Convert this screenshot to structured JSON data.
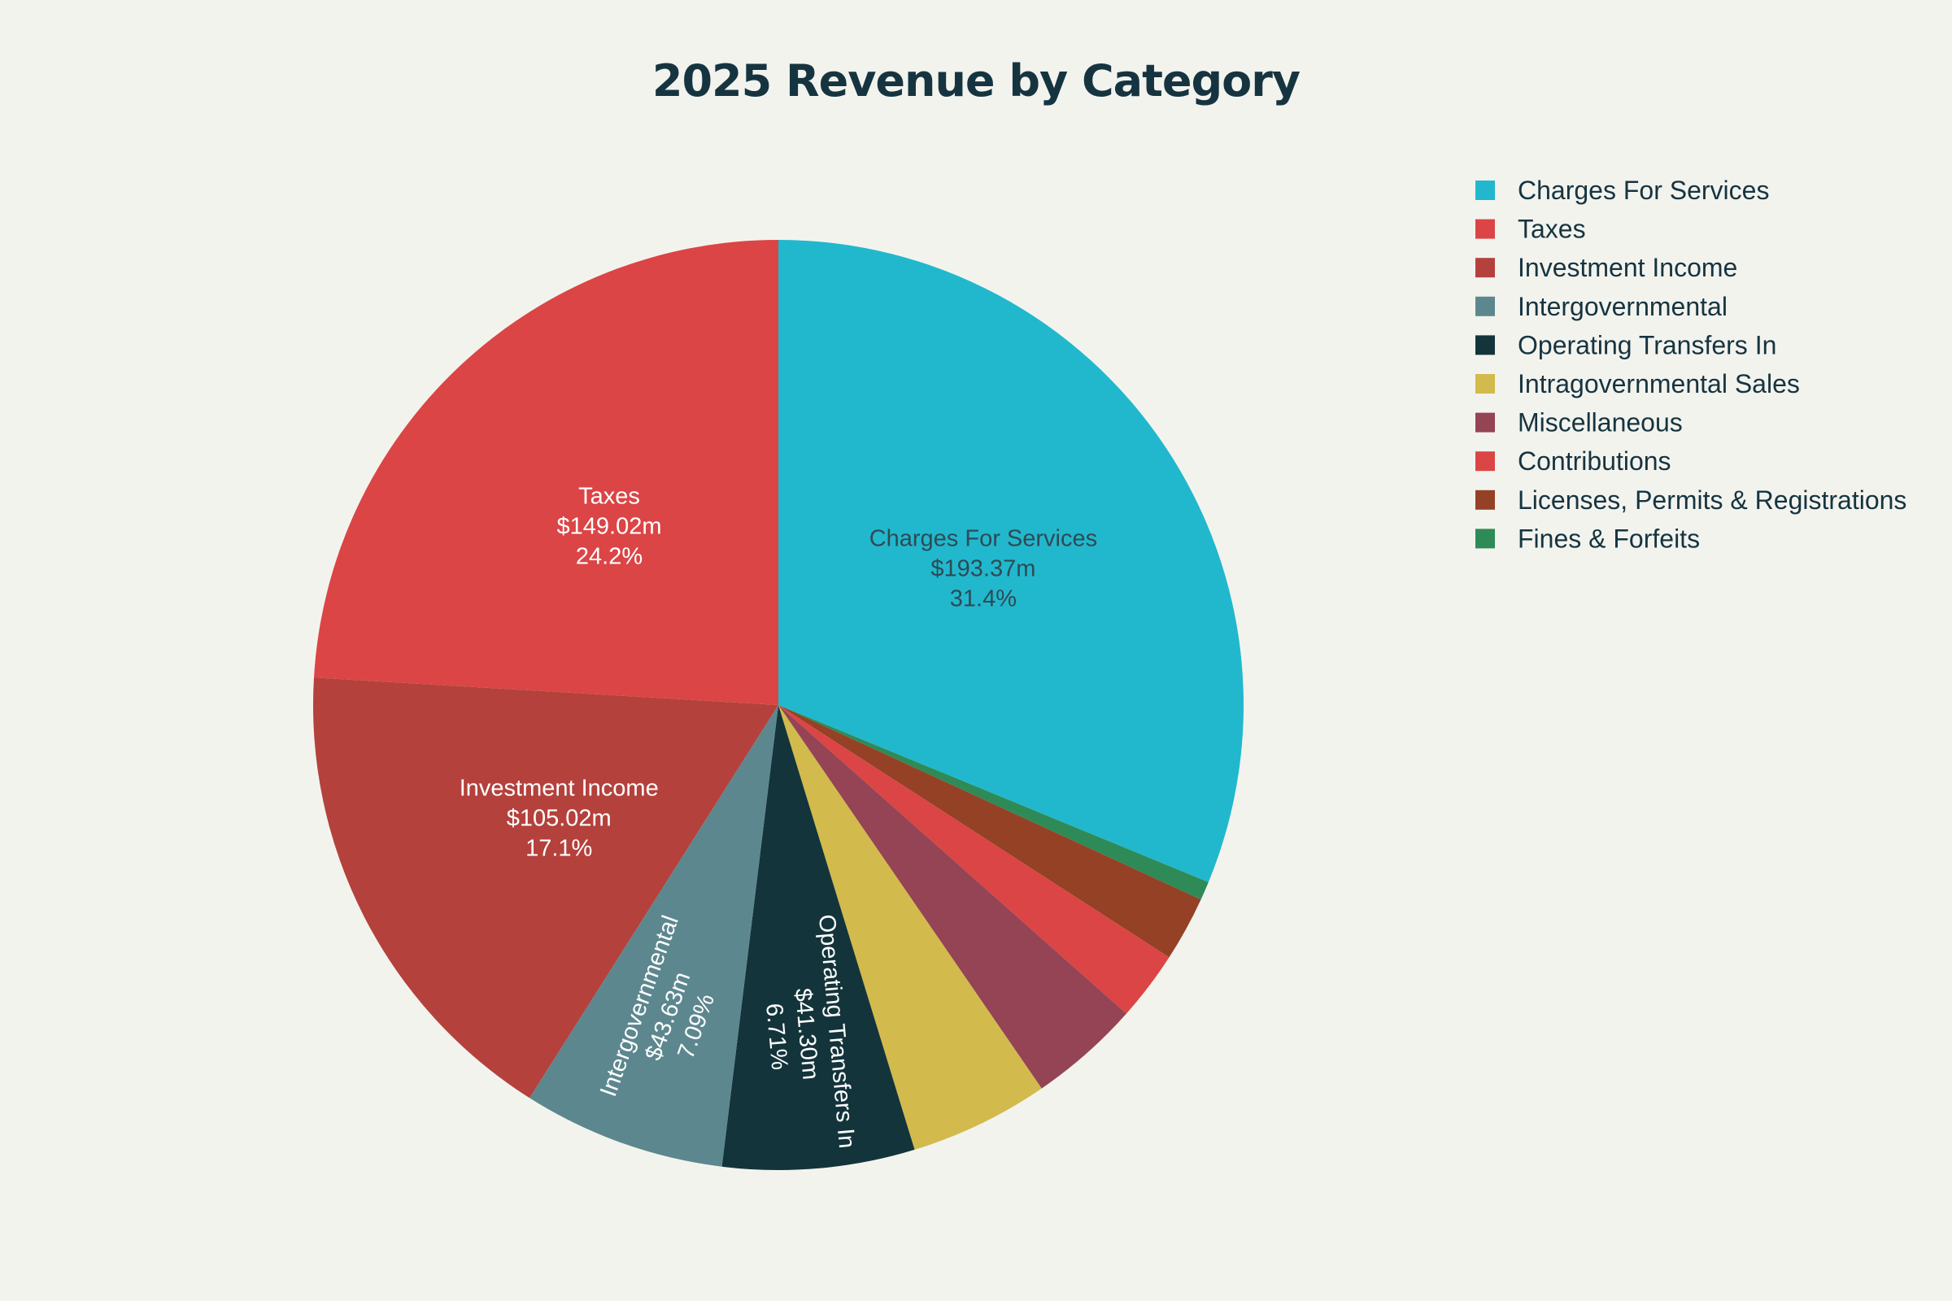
{
  "chart_data": {
    "type": "pie",
    "title": "2025 Revenue by Category",
    "start_angle_deg": 0,
    "direction": "clockwise",
    "legend_position": "right",
    "slices": [
      {
        "name": "Charges For Services",
        "value": 193.37,
        "value_label": "$193.37m",
        "percent_label": "31.4%",
        "color": "#21b8cd",
        "label_color": "#2f4a55",
        "show_label": true,
        "rotated_label": false
      },
      {
        "name": "Fines & Forfeits",
        "value": 4.0,
        "value_label": "",
        "percent_label": "",
        "color": "#2e8b57",
        "label_color": "#ffffff",
        "show_label": false,
        "rotated_label": false
      },
      {
        "name": "Licenses, Permits & Registrations",
        "value": 14.0,
        "value_label": "",
        "percent_label": "",
        "color": "#944126",
        "label_color": "#ffffff",
        "show_label": false,
        "rotated_label": false
      },
      {
        "name": "Contributions",
        "value": 15.0,
        "value_label": "",
        "percent_label": "",
        "color": "#db4545",
        "label_color": "#ffffff",
        "show_label": false,
        "rotated_label": false
      },
      {
        "name": "Miscellaneous",
        "value": 24.0,
        "value_label": "",
        "percent_label": "",
        "color": "#944454",
        "label_color": "#ffffff",
        "show_label": false,
        "rotated_label": false
      },
      {
        "name": "Intragovernmental Sales",
        "value": 30.0,
        "value_label": "",
        "percent_label": "",
        "color": "#d2ba4c",
        "label_color": "#ffffff",
        "show_label": false,
        "rotated_label": false
      },
      {
        "name": "Operating Transfers In",
        "value": 41.3,
        "value_label": "$41.30m",
        "percent_label": "6.71%",
        "color": "#13343b",
        "label_color": "#ffffff",
        "show_label": true,
        "rotated_label": true
      },
      {
        "name": "Intergovernmental",
        "value": 43.63,
        "value_label": "$43.63m",
        "percent_label": "7.09%",
        "color": "#5d878f",
        "label_color": "#ffffff",
        "show_label": true,
        "rotated_label": true
      },
      {
        "name": "Investment Income",
        "value": 105.02,
        "value_label": "$105.02m",
        "percent_label": "17.1%",
        "color": "#b4413c",
        "label_color": "#ffffff",
        "show_label": true,
        "rotated_label": false
      },
      {
        "name": "Taxes",
        "value": 149.02,
        "value_label": "$149.02m",
        "percent_label": "24.2%",
        "color": "#db4545",
        "label_color": "#ffffff",
        "show_label": true,
        "rotated_label": false
      }
    ],
    "legend": [
      {
        "name": "Charges For Services",
        "color": "#21b8cd"
      },
      {
        "name": "Taxes",
        "color": "#db4545"
      },
      {
        "name": "Investment Income",
        "color": "#b4413c"
      },
      {
        "name": "Intergovernmental",
        "color": "#5d878f"
      },
      {
        "name": "Operating Transfers In",
        "color": "#13343b"
      },
      {
        "name": "Intragovernmental Sales",
        "color": "#d2ba4c"
      },
      {
        "name": "Miscellaneous",
        "color": "#944454"
      },
      {
        "name": "Contributions",
        "color": "#db4545"
      },
      {
        "name": "Licenses, Permits & Registrations",
        "color": "#944126"
      },
      {
        "name": "Fines & Forfeits",
        "color": "#2e8b57"
      }
    ]
  }
}
